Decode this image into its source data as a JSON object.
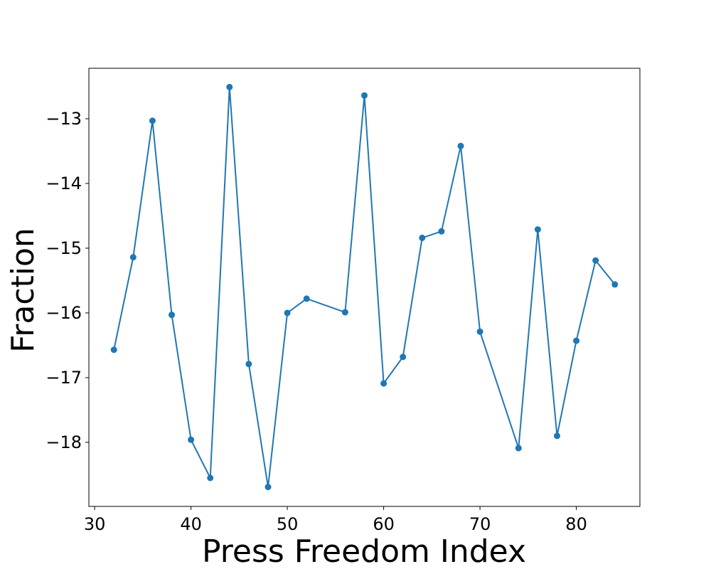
{
  "chart_data": {
    "type": "line",
    "title": "",
    "xlabel": "Press Freedom Index",
    "ylabel": "Fraction",
    "xlim": [
      29.4,
      86.6
    ],
    "ylim": [
      -18.99,
      -12.22
    ],
    "x_ticks": [
      30,
      40,
      50,
      60,
      70,
      80
    ],
    "y_ticks": [
      -18,
      -17,
      -16,
      -15,
      -14,
      -13
    ],
    "grid": false,
    "legend": "none",
    "series": [
      {
        "color": "#1f77b4",
        "marker": "circle",
        "points": [
          {
            "x": 32,
            "y": -16.57
          },
          {
            "x": 34,
            "y": -15.14
          },
          {
            "x": 36,
            "y": -13.03
          },
          {
            "x": 38,
            "y": -16.03
          },
          {
            "x": 40,
            "y": -17.96
          },
          {
            "x": 42,
            "y": -18.55
          },
          {
            "x": 44,
            "y": -12.51
          },
          {
            "x": 46,
            "y": -16.79
          },
          {
            "x": 48,
            "y": -18.69
          },
          {
            "x": 50,
            "y": -16.0
          },
          {
            "x": 52,
            "y": -15.78
          },
          {
            "x": 56,
            "y": -15.99
          },
          {
            "x": 58,
            "y": -12.64
          },
          {
            "x": 60,
            "y": -17.09
          },
          {
            "x": 62,
            "y": -16.68
          },
          {
            "x": 64,
            "y": -14.84
          },
          {
            "x": 66,
            "y": -14.74
          },
          {
            "x": 68,
            "y": -13.42
          },
          {
            "x": 70,
            "y": -16.29
          },
          {
            "x": 74,
            "y": -18.09
          },
          {
            "x": 76,
            "y": -14.71
          },
          {
            "x": 78,
            "y": -17.9
          },
          {
            "x": 80,
            "y": -16.43
          },
          {
            "x": 82,
            "y": -15.19
          },
          {
            "x": 84,
            "y": -15.56
          }
        ]
      }
    ]
  }
}
